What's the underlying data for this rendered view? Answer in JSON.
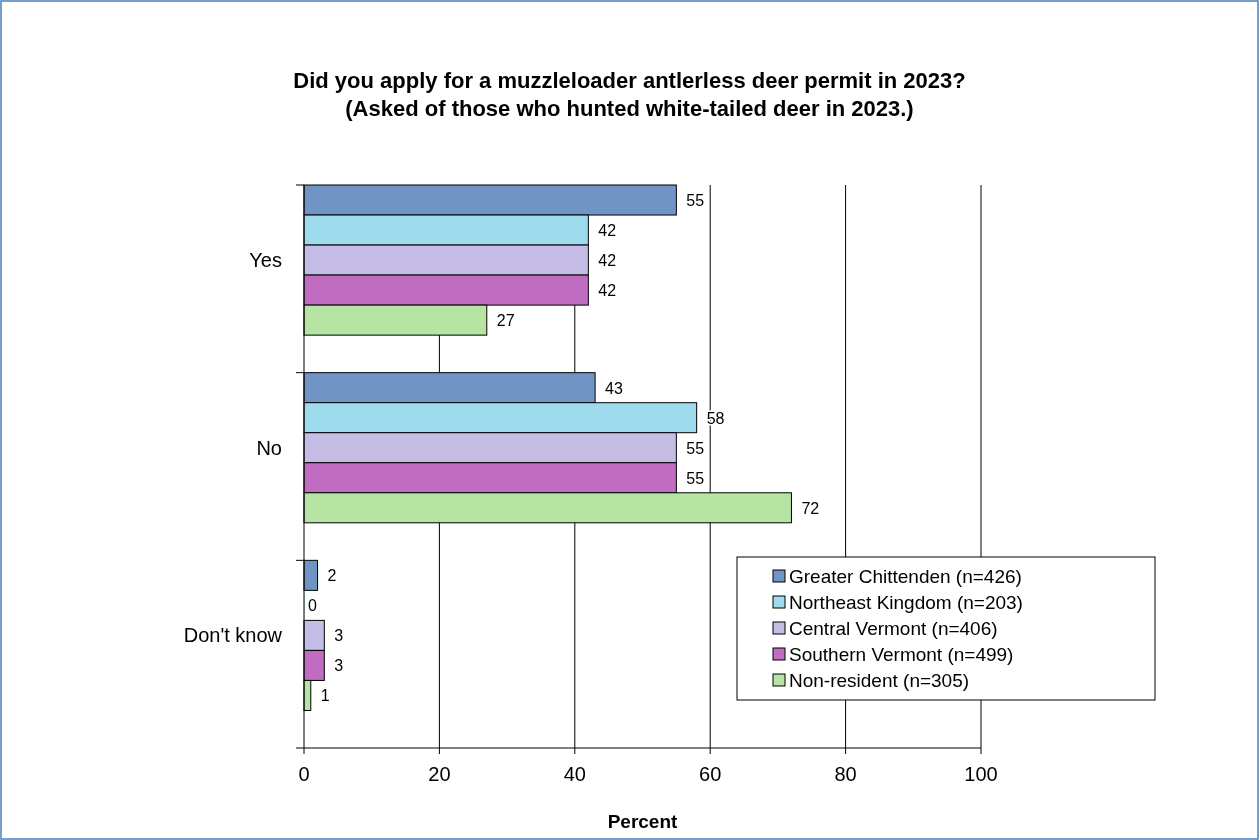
{
  "chart_data": {
    "type": "bar",
    "orientation": "horizontal",
    "title": "Did you apply for a muzzleloader antlerless deer permit in 2023?\n(Asked of those who hunted white-tailed deer in 2023.)",
    "xlabel": "Percent",
    "categories": [
      "Yes",
      "No",
      "Don't know"
    ],
    "series": [
      {
        "name": "Greater Chittenden (n=426)",
        "color": "#7094c4",
        "values": [
          55,
          43,
          2
        ]
      },
      {
        "name": "Northeast Kingdom (n=203)",
        "color": "#9edbec",
        "values": [
          42,
          58,
          0
        ]
      },
      {
        "name": "Central Vermont (n=406)",
        "color": "#c6bde6",
        "values": [
          42,
          55,
          3
        ]
      },
      {
        "name": "Southern Vermont (n=499)",
        "color": "#c06cc0",
        "values": [
          42,
          55,
          3
        ]
      },
      {
        "name": "Non-resident (n=305)",
        "color": "#b6e4a2",
        "values": [
          27,
          72,
          1
        ]
      }
    ],
    "xlim": [
      0,
      100
    ],
    "xticks": [
      0,
      20,
      40,
      60,
      80,
      100
    ],
    "grid": "x",
    "legend": "bottom right",
    "data_labels": true
  }
}
